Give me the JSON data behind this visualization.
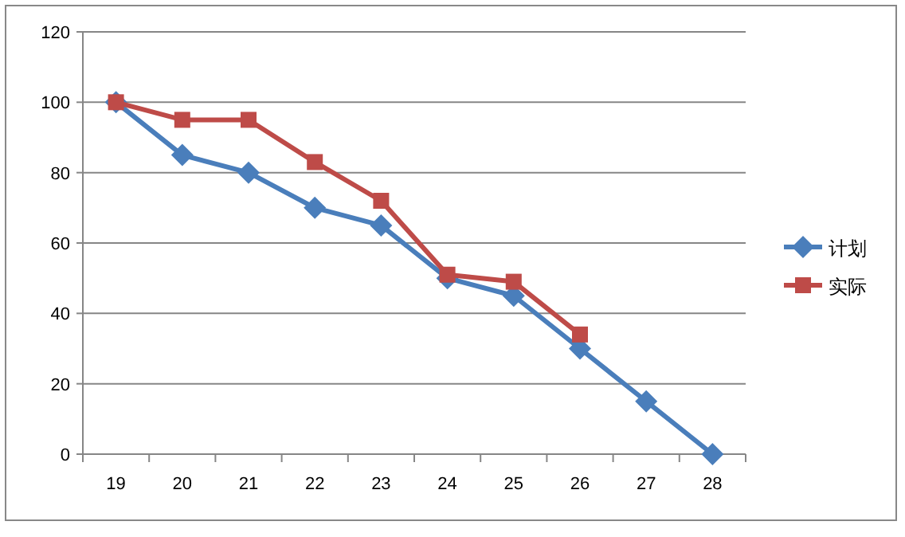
{
  "chart_data": {
    "type": "line",
    "categories": [
      "19",
      "20",
      "21",
      "22",
      "23",
      "24",
      "25",
      "26",
      "27",
      "28"
    ],
    "series": [
      {
        "name": "计划",
        "color": "#4a7ebb",
        "marker": "diamond",
        "values": [
          100,
          85,
          80,
          70,
          65,
          50,
          45,
          30,
          15,
          0
        ]
      },
      {
        "name": "实际",
        "color": "#be4b48",
        "marker": "square",
        "values": [
          100,
          95,
          95,
          83,
          72,
          51,
          49,
          34,
          null,
          null
        ]
      }
    ],
    "ylim": [
      0,
      120
    ],
    "yticks": [
      0,
      20,
      40,
      60,
      80,
      100,
      120
    ],
    "grid": "y",
    "legend": "right"
  }
}
